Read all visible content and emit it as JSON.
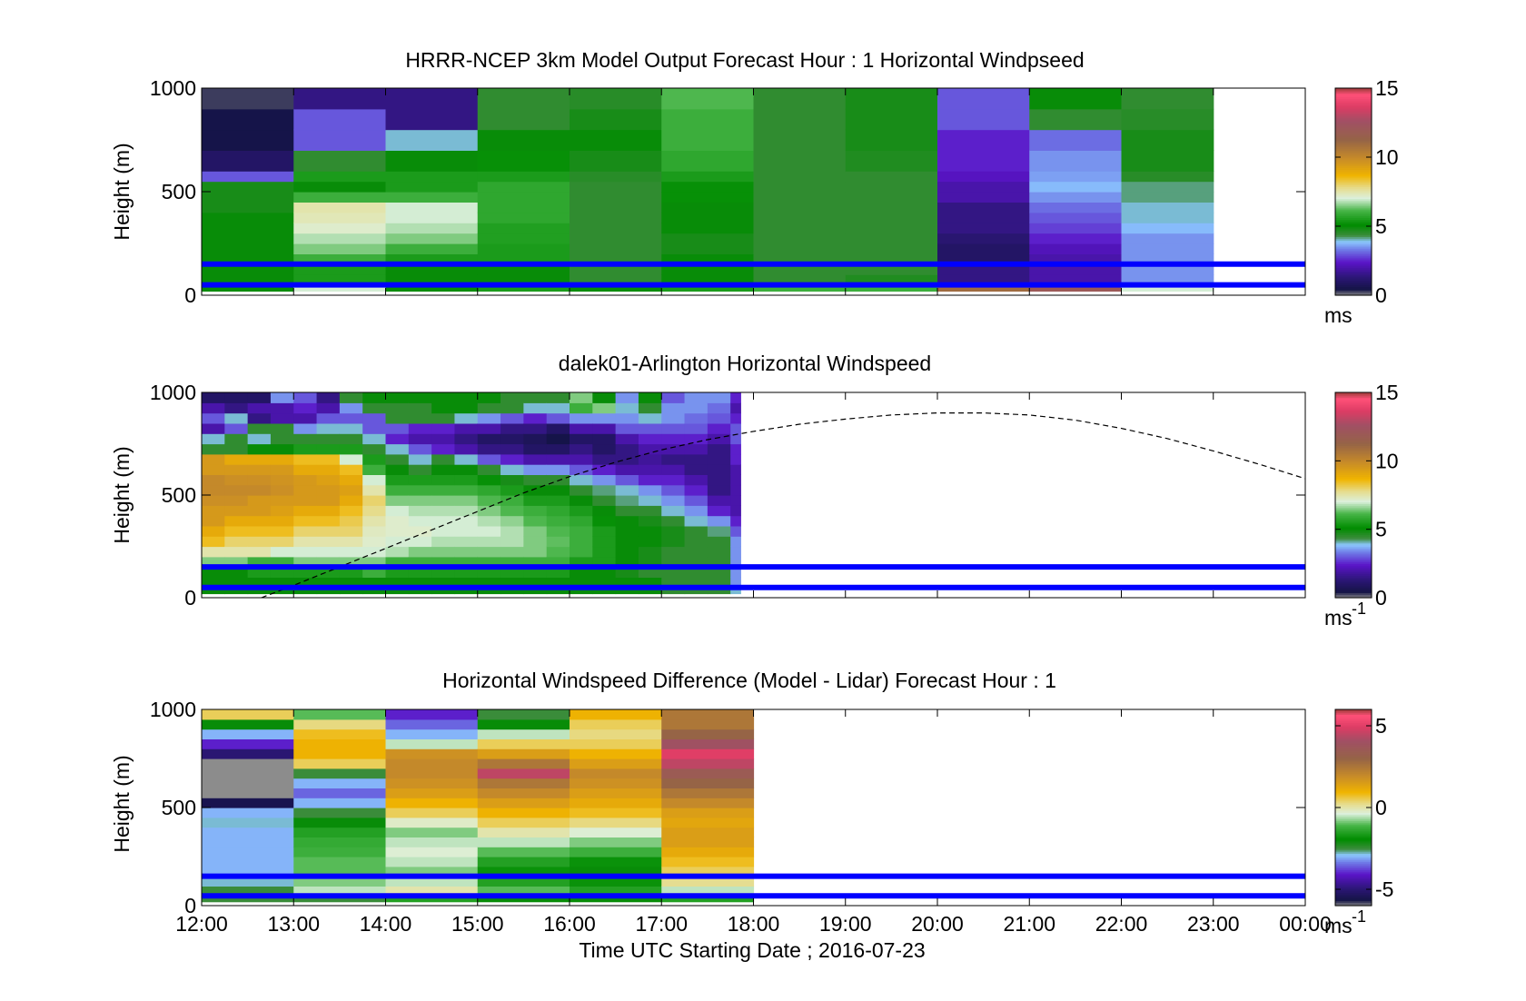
{
  "figure": {
    "x_tick_labels": [
      "12:00",
      "13:00",
      "14:00",
      "15:00",
      "16:00",
      "17:00",
      "18:00",
      "19:00",
      "20:00",
      "21:00",
      "22:00",
      "23:00",
      "00:00"
    ],
    "x_label": "Time UTC  Starting Date ; 2016-07-23"
  },
  "chart_data": [
    {
      "type": "heatmap",
      "title": "HRRR-NCEP 3km Model Output   Forecast Hour : 1 Horizontal Windpseed",
      "ylabel": "Height (m)",
      "yticks": [
        {
          "value": 0,
          "label": "0"
        },
        {
          "value": 500,
          "label": "500"
        },
        {
          "value": 1000,
          "label": "1000"
        }
      ],
      "ylim": [
        0,
        1000
      ],
      "xlim": [
        12,
        24
      ],
      "colorbar": {
        "label": "ms",
        "label_sup": "",
        "ticks": [
          {
            "value": 0,
            "label": "0"
          },
          {
            "value": 5,
            "label": "5"
          },
          {
            "value": 10,
            "label": "10"
          },
          {
            "value": 15,
            "label": "15"
          }
        ],
        "range": [
          0,
          15
        ],
        "colormap": "wind"
      },
      "time_edges": [
        12,
        13,
        14,
        15,
        16,
        17,
        18,
        19,
        20,
        21,
        22,
        23
      ],
      "height_bins": [
        20,
        50,
        100,
        150,
        200,
        250,
        300,
        350,
        400,
        450,
        500,
        550,
        600,
        700,
        800,
        900,
        1000
      ],
      "values": [
        [
          5,
          5,
          5,
          5,
          5,
          5,
          5,
          5,
          4.8,
          4.8,
          4.8,
          3,
          1,
          0.5,
          0.5,
          0.3
        ],
        [
          7,
          5.5,
          5.5,
          6,
          6.5,
          6.8,
          7.2,
          7.4,
          7.5,
          6,
          5,
          5.5,
          4.5,
          3,
          3,
          1.5
        ],
        [
          5,
          5,
          5,
          5.5,
          6,
          6.5,
          6.8,
          7,
          7,
          6,
          5.5,
          5.5,
          5,
          4,
          1.5,
          1.5
        ],
        [
          5.5,
          5,
          5,
          5.5,
          5.5,
          5.6,
          5.6,
          5.8,
          5.8,
          5.8,
          5.8,
          5.5,
          5.2,
          5,
          4.5,
          4.5
        ],
        [
          5,
          4.5,
          4.5,
          4.5,
          4.5,
          4.5,
          4.5,
          4.5,
          4.5,
          4.5,
          4.5,
          4.6,
          4.8,
          5,
          4.8,
          4.6
        ],
        [
          5.5,
          5,
          5,
          5,
          4.8,
          4.8,
          5,
          5,
          5,
          5.2,
          5.2,
          5.5,
          5.8,
          6,
          6,
          6.2
        ],
        [
          6,
          4.5,
          4.5,
          4.5,
          4.5,
          4.5,
          4.5,
          4.5,
          4.5,
          4.5,
          4.5,
          4.5,
          4.5,
          4.5,
          4.5,
          4.5
        ],
        [
          6,
          4.7,
          4.5,
          4.5,
          4.5,
          4.5,
          4.5,
          4.5,
          4.5,
          4.5,
          4.5,
          4.5,
          4.7,
          4.8,
          4.8,
          4.8
        ],
        [
          11,
          1.5,
          1.5,
          1,
          1,
          1.2,
          1.5,
          1.5,
          1.5,
          2,
          2,
          2.3,
          2.5,
          2.5,
          3,
          3
        ],
        [
          12,
          2,
          2,
          2,
          2.2,
          2.5,
          2.8,
          3,
          3.2,
          3.5,
          3.8,
          3.6,
          3.5,
          3.2,
          4.5,
          5
        ],
        [
          7,
          3.5,
          3.5,
          3.5,
          3.5,
          3.5,
          3.8,
          4,
          4,
          4.2,
          4.2,
          4.6,
          4.8,
          4.8,
          4.6,
          4.5
        ]
      ],
      "lines": [
        {
          "y": 50,
          "color": "#0000ff"
        },
        {
          "y": 150,
          "color": "#0000ff"
        }
      ]
    },
    {
      "type": "heatmap",
      "title": "dalek01-Arlington  Horizontal Windspeed",
      "ylabel": "Height (m)",
      "yticks": [
        {
          "value": 0,
          "label": "0"
        },
        {
          "value": 500,
          "label": "500"
        },
        {
          "value": 1000,
          "label": "1000"
        }
      ],
      "ylim": [
        0,
        1000
      ],
      "xlim": [
        12,
        24
      ],
      "colorbar": {
        "label": "ms",
        "label_sup": "-1",
        "ticks": [
          {
            "value": 0,
            "label": "0"
          },
          {
            "value": 5,
            "label": "5"
          },
          {
            "value": 10,
            "label": "10"
          },
          {
            "value": 15,
            "label": "15"
          }
        ],
        "range": [
          0,
          15
        ],
        "colormap": "wind"
      },
      "time_edges": [
        12.0,
        12.25,
        12.5,
        12.75,
        13.0,
        13.25,
        13.5,
        13.75,
        14.0,
        14.25,
        14.5,
        14.75,
        15.0,
        15.25,
        15.5,
        15.75,
        16.0,
        16.25,
        16.5,
        16.75,
        17.0,
        17.25,
        17.5,
        17.75,
        17.86
      ],
      "height_bins": [
        20,
        50,
        100,
        150,
        200,
        250,
        300,
        350,
        400,
        450,
        500,
        550,
        600,
        650,
        700,
        750,
        800,
        850,
        900,
        950,
        1000
      ],
      "values": [
        [
          5,
          5,
          5,
          6.5,
          7.5,
          8.5,
          9,
          9.5,
          9.5,
          9.8,
          10,
          10,
          9.5,
          9.5,
          4.5,
          4,
          2,
          3,
          2,
          1
        ],
        [
          5,
          5,
          5,
          6.5,
          7.5,
          8,
          8.5,
          9,
          9.5,
          9.8,
          10,
          9.8,
          9.5,
          9,
          4.5,
          4.5,
          3,
          4,
          1.5,
          1
        ],
        [
          5,
          5,
          5.5,
          6,
          7.5,
          8,
          8.5,
          9,
          9.5,
          9.5,
          10,
          9.8,
          9.5,
          9,
          5,
          4,
          4.5,
          1.5,
          2,
          1
        ],
        [
          5,
          5,
          5.5,
          6,
          7,
          8,
          8.5,
          9,
          9.3,
          9.5,
          9.8,
          9.7,
          9.5,
          9,
          5,
          4.5,
          4.5,
          2,
          2,
          3.5
        ],
        [
          5,
          5,
          5.5,
          6.5,
          7,
          7.5,
          8,
          8.5,
          9,
          9.5,
          9.5,
          9.5,
          9,
          8.5,
          5.5,
          4.5,
          3.5,
          2,
          2.5,
          3
        ],
        [
          5,
          5,
          5.5,
          6.5,
          7,
          7.5,
          8,
          8.5,
          9,
          9.5,
          9.5,
          9.3,
          9,
          8.5,
          5.5,
          4.5,
          4,
          3,
          2,
          1.5
        ],
        [
          5,
          5,
          5.5,
          6.5,
          7,
          7.5,
          8,
          8.2,
          8.5,
          9,
          9.3,
          9,
          8.5,
          7,
          5.5,
          4.5,
          4,
          3,
          3.5,
          4.5
        ],
        [
          5,
          5,
          6,
          6.5,
          7,
          7.2,
          7.3,
          7.5,
          7.8,
          8,
          7.5,
          7,
          6,
          5.5,
          4.5,
          4,
          3,
          3,
          4.5,
          5
        ],
        [
          5,
          5,
          5.5,
          6,
          6.8,
          7,
          7.2,
          7.2,
          7,
          6.5,
          6,
          5.5,
          5,
          4.5,
          4,
          2.5,
          3,
          4.5,
          4.5,
          5
        ],
        [
          5,
          5,
          5.5,
          6,
          6.5,
          7,
          7.2,
          7,
          6.8,
          6.5,
          6,
          5.5,
          4.5,
          4,
          3,
          2,
          2.5,
          4.5,
          4.5,
          5
        ],
        [
          5,
          5,
          5.5,
          6,
          6.5,
          6.8,
          7,
          7,
          6.8,
          6.5,
          6,
          5.5,
          5,
          4.5,
          2.5,
          2,
          2.5,
          4.5,
          5,
          5
        ],
        [
          5,
          5,
          5.5,
          6,
          6.5,
          6.8,
          7,
          7,
          6.8,
          6.5,
          6,
          5.5,
          5,
          4,
          2,
          1.5,
          2,
          4,
          5,
          5
        ],
        [
          5,
          5,
          5.5,
          6,
          6.5,
          6.8,
          7,
          6.8,
          6.5,
          6.2,
          5.8,
          5.2,
          4.5,
          3,
          1.5,
          1,
          2,
          3.5,
          4.5,
          5
        ],
        [
          5,
          5,
          5.5,
          6,
          6.5,
          6.8,
          6.8,
          6.6,
          6.2,
          6,
          5.5,
          4.8,
          4,
          2.5,
          1.5,
          1,
          1.5,
          3,
          4.5,
          4.5
        ],
        [
          5,
          5,
          5.5,
          6,
          6.5,
          6.5,
          6.5,
          6.2,
          6,
          5.5,
          5,
          4.5,
          3.5,
          2,
          1,
          0.8,
          1.5,
          2.5,
          4,
          4.5
        ],
        [
          5,
          5,
          5.5,
          6,
          6.2,
          6.3,
          6.2,
          6,
          5.8,
          5.5,
          5,
          4.5,
          3.5,
          2,
          1,
          0.5,
          1,
          3,
          4,
          4.5
        ],
        [
          5,
          5,
          5,
          5.5,
          6,
          6,
          6,
          5.8,
          5.5,
          5,
          4.5,
          4,
          3,
          2,
          1.5,
          1,
          2,
          3.5,
          6,
          6.5
        ],
        [
          5,
          5,
          5,
          5.5,
          5.5,
          5.5,
          5.5,
          5.2,
          5,
          4.5,
          4.2,
          3.5,
          2.5,
          1.5,
          1,
          1,
          2,
          3.5,
          6.5,
          5
        ],
        [
          5,
          5,
          4.8,
          5,
          5,
          5,
          5,
          5,
          4.5,
          4.2,
          4,
          3,
          2,
          1.5,
          1.5,
          2,
          3,
          3.5,
          4,
          3.5
        ],
        [
          5,
          5,
          4.5,
          4.8,
          4.8,
          5,
          5,
          4.8,
          4.5,
          4,
          3.5,
          2.5,
          2,
          1.8,
          2,
          2.5,
          3,
          4,
          4.5,
          5
        ],
        [
          4.5,
          4.5,
          4.5,
          4.5,
          4.5,
          4.8,
          4.8,
          4.5,
          4,
          3.5,
          3,
          2.5,
          2,
          1.5,
          2,
          2.5,
          3,
          3.5,
          3.5,
          3
        ],
        [
          4.5,
          4.5,
          4.5,
          4.5,
          4.5,
          4.5,
          4.5,
          4,
          3.5,
          3,
          2.5,
          2,
          1.5,
          1.5,
          2,
          2.5,
          3,
          3.2,
          3.5,
          3.5
        ],
        [
          4.5,
          4.5,
          4.5,
          4.5,
          4.5,
          4.5,
          4.2,
          3.5,
          2.5,
          2,
          1.5,
          1.5,
          1.5,
          1.5,
          1.5,
          2,
          2.5,
          3,
          3.2,
          3.5
        ],
        [
          4,
          3.5,
          3.5,
          3.5,
          3.5,
          3.5,
          3,
          2.5,
          2,
          2,
          2,
          2,
          2,
          2.5,
          2.5,
          3,
          3,
          2.5,
          2,
          2.5
        ]
      ],
      "lines": [
        {
          "y": 50,
          "color": "#0000ff"
        },
        {
          "y": 150,
          "color": "#0000ff"
        }
      ],
      "dashed_curve": {
        "x": [
          12.65,
          13.0,
          13.5,
          14.0,
          14.5,
          15.0,
          15.5,
          16.0,
          16.5,
          17.0,
          17.5,
          18.0,
          18.5,
          19.0,
          19.5,
          20.0,
          20.5,
          21.0,
          21.5,
          22.0,
          22.5,
          23.0,
          23.5,
          24.0
        ],
        "y": [
          0,
          60,
          150,
          240,
          330,
          420,
          510,
          590,
          660,
          720,
          770,
          810,
          845,
          870,
          890,
          900,
          900,
          890,
          865,
          825,
          775,
          715,
          650,
          580
        ]
      }
    },
    {
      "type": "heatmap",
      "title": "Horizontal Windspeed Difference (Model - Lidar) Forecast Hour : 1",
      "ylabel": "Height (m)",
      "yticks": [
        {
          "value": 0,
          "label": "0"
        },
        {
          "value": 500,
          "label": "500"
        },
        {
          "value": 1000,
          "label": "1000"
        }
      ],
      "ylim": [
        0,
        1000
      ],
      "xlim": [
        12,
        24
      ],
      "colorbar": {
        "label": "ms",
        "label_sup": "-1",
        "ticks": [
          {
            "value": -5,
            "label": "-5"
          },
          {
            "value": 0,
            "label": "0"
          },
          {
            "value": 5,
            "label": "5"
          }
        ],
        "range": [
          -6,
          6
        ],
        "colormap": "diff"
      },
      "time_edges": [
        12,
        13,
        14,
        15,
        16,
        17,
        18
      ],
      "height_bins": [
        20,
        50,
        100,
        150,
        200,
        250,
        300,
        350,
        400,
        450,
        500,
        550,
        600,
        650,
        700,
        750,
        800,
        850,
        900,
        950,
        1000
      ],
      "values": [
        [
          -2.5,
          -2.5,
          -2.8,
          -3,
          -3,
          -3,
          -3,
          -3,
          -2.8,
          -3,
          -5.5,
          -6,
          -6.5,
          -6.5,
          -6.5,
          -5,
          -4,
          -3,
          -2,
          0.5
        ],
        [
          -2.5,
          -0.5,
          -0.8,
          -1,
          -1,
          -1.2,
          -1.3,
          -1.5,
          -2,
          -2.5,
          -3,
          -3.5,
          -3,
          -2.5,
          0.5,
          1,
          1,
          0.8,
          0.3,
          -1
        ],
        [
          -1.5,
          0,
          -0.5,
          -0.8,
          -0.5,
          -0.3,
          -0.5,
          -0.8,
          -0.2,
          0.5,
          1,
          1.5,
          1.8,
          2,
          2,
          1.8,
          -0.5,
          -3,
          -3.5,
          -4
        ],
        [
          -2,
          -1,
          -1.5,
          -1.8,
          -1.5,
          -1,
          -0.5,
          0,
          0.5,
          1,
          1.5,
          2,
          2.5,
          4.5,
          2.5,
          1.5,
          0.5,
          -0.5,
          -2,
          -2.5
        ],
        [
          -2,
          -1.5,
          -1.8,
          -2,
          -1.8,
          -1.2,
          -0.8,
          -0.3,
          0.3,
          0.8,
          1.2,
          1.5,
          1.8,
          2,
          1.5,
          1,
          0.5,
          0.3,
          0.5,
          1
        ],
        [
          -1.5,
          -0.5,
          0.2,
          0.5,
          0.8,
          1.2,
          1.5,
          1.5,
          1.3,
          1.5,
          2,
          2.5,
          3,
          3.5,
          4.5,
          5,
          4,
          3,
          2.5,
          2.5
        ]
      ],
      "lines": [
        {
          "y": 50,
          "color": "#0000ff"
        },
        {
          "y": 150,
          "color": "#0000ff"
        }
      ]
    }
  ]
}
